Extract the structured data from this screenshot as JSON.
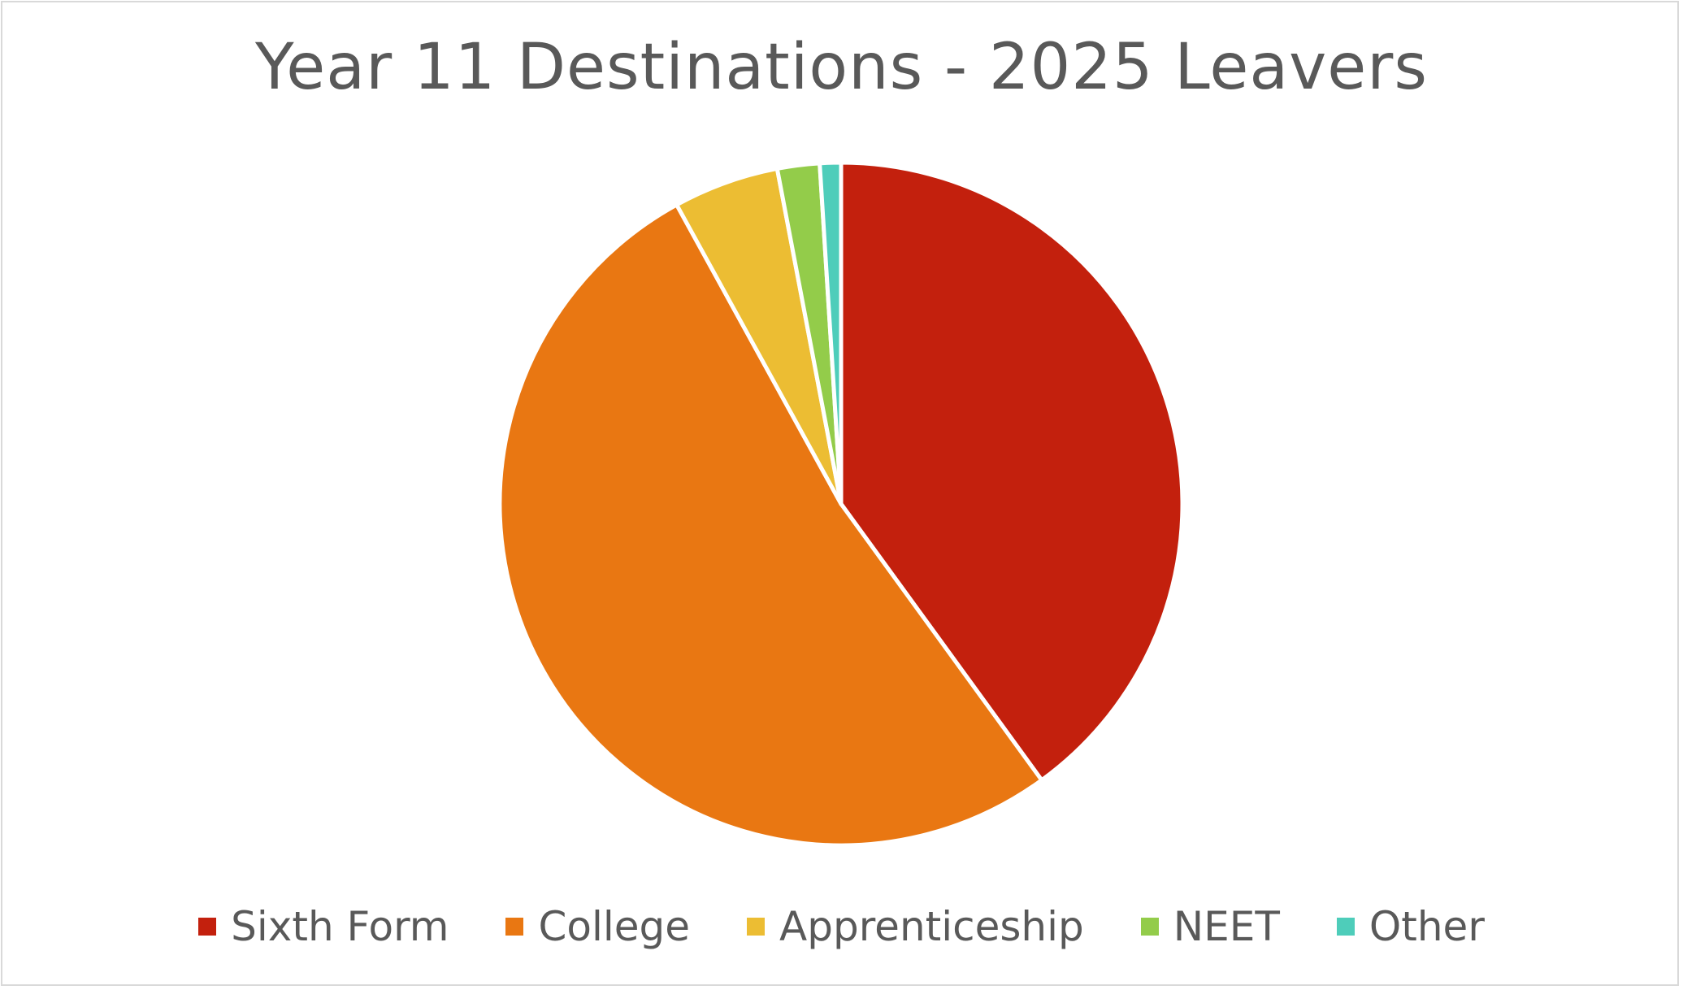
{
  "chart_data": {
    "type": "pie",
    "title": "Year 11 Destinations - 2025 Leavers",
    "categories": [
      "Sixth Form",
      "College",
      "Apprenticeship",
      "NEET",
      "Other"
    ],
    "values": [
      40,
      52,
      5,
      2,
      1
    ],
    "colors": [
      "#c3200d",
      "#e97712",
      "#ecbd33",
      "#93cc4a",
      "#4ecdba"
    ],
    "legend_position": "bottom",
    "start_angle": "12 o'clock",
    "direction": "clockwise"
  }
}
